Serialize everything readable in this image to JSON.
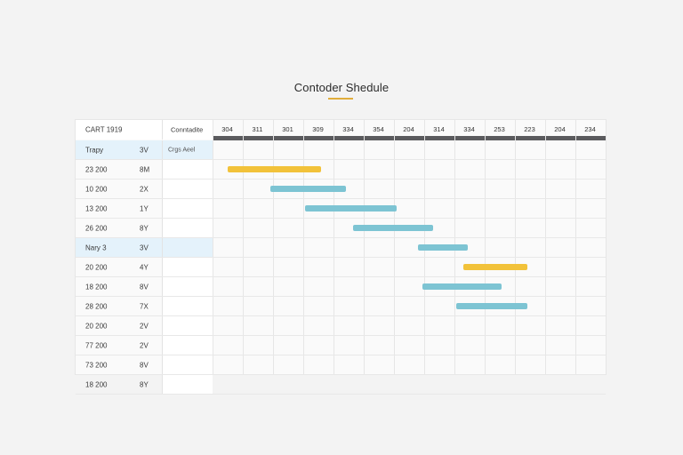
{
  "title": "Contoder Shedule",
  "header": {
    "col_a": "CART 1919",
    "col_c": "Conntadite",
    "ticks": [
      "304",
      "311",
      "301",
      "309",
      "334",
      "354",
      "204",
      "314",
      "334",
      "253",
      "223",
      "204",
      "234"
    ]
  },
  "rows": [
    {
      "a": "Trapy",
      "b": "3V",
      "c": "Crgs Aeel",
      "highlight": true
    },
    {
      "a": "23 200",
      "b": "8M",
      "c": "",
      "highlight": false
    },
    {
      "a": "10 200",
      "b": "2X",
      "c": "",
      "highlight": false
    },
    {
      "a": "13 200",
      "b": "1Y",
      "c": "",
      "highlight": false
    },
    {
      "a": "26 200",
      "b": "8Y",
      "c": "",
      "highlight": false
    },
    {
      "a": "Nary 3",
      "b": "3V",
      "c": "",
      "highlight": true
    },
    {
      "a": "20 200",
      "b": "4Y",
      "c": "",
      "highlight": false
    },
    {
      "a": "18 200",
      "b": "8V",
      "c": "",
      "highlight": false
    },
    {
      "a": "28 200",
      "b": "7X",
      "c": "",
      "highlight": false
    },
    {
      "a": "20 200",
      "b": "2V",
      "c": "",
      "highlight": false
    },
    {
      "a": "77 200",
      "b": "2V",
      "c": "",
      "highlight": false
    },
    {
      "a": "73 200",
      "b": "8V",
      "c": "",
      "highlight": false
    },
    {
      "a": "18 200",
      "b": "8Y",
      "c": "",
      "highlight": false
    }
  ],
  "tasks": [
    {
      "row": 1,
      "start": 0.5,
      "end": 3.6,
      "color": "#f2c23a"
    },
    {
      "row": 2,
      "start": 1.9,
      "end": 4.4,
      "color": "#7dc4d3"
    },
    {
      "row": 3,
      "start": 3.05,
      "end": 6.1,
      "color": "#7dc4d3"
    },
    {
      "row": 4,
      "start": 4.65,
      "end": 7.3,
      "color": "#7dc4d3"
    },
    {
      "row": 5,
      "start": 6.8,
      "end": 8.45,
      "color": "#7dc4d3"
    },
    {
      "row": 6,
      "start": 8.3,
      "end": 10.4,
      "color": "#f2c23a"
    },
    {
      "row": 7,
      "start": 6.95,
      "end": 9.55,
      "color": "#7dc4d3"
    },
    {
      "row": 8,
      "start": 8.05,
      "end": 10.4,
      "color": "#7dc4d3"
    }
  ]
}
